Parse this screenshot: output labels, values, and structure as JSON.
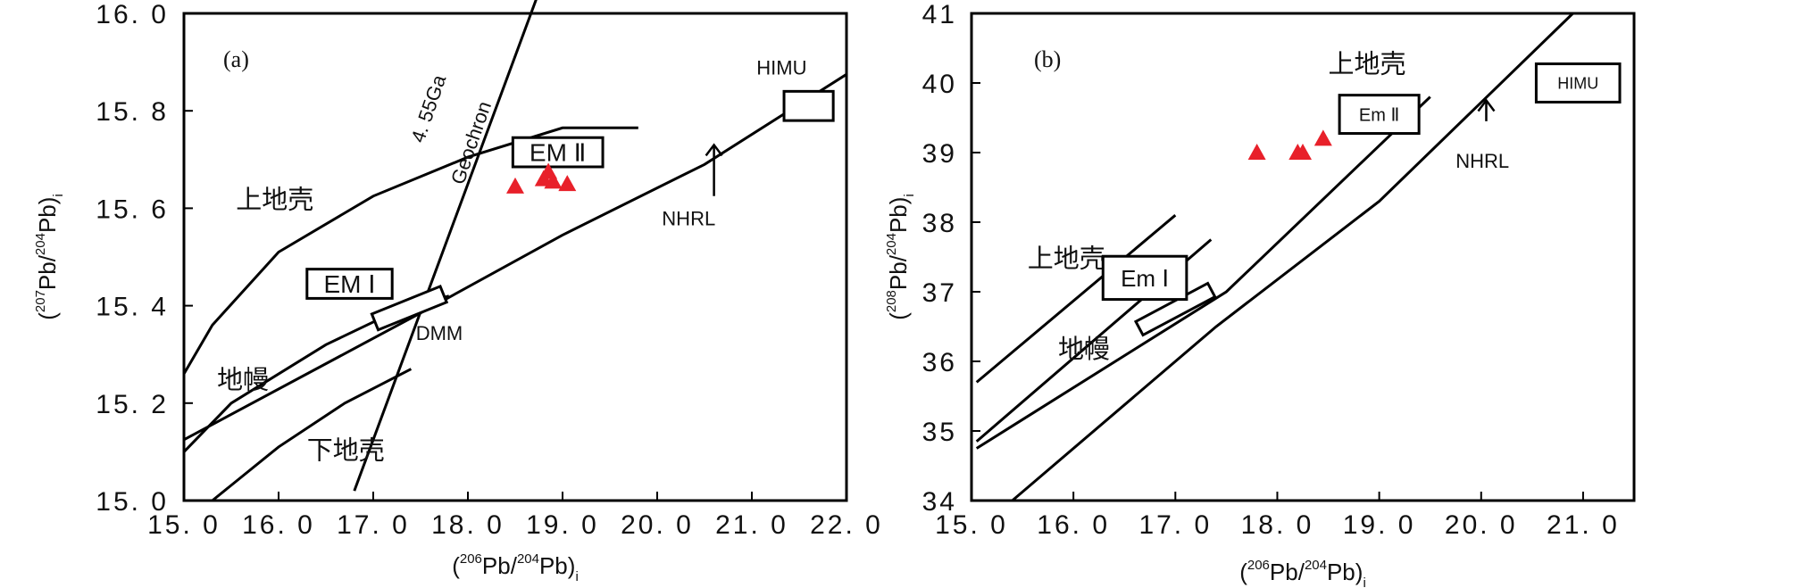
{
  "chart_data": [
    {
      "id": "a",
      "type": "scatter",
      "panel_label": "(a)",
      "xlabel": {
        "open": "(",
        "sup": "206",
        "a": "Pb/",
        "sup2": "204",
        "b": "Pb)",
        "sub": "i"
      },
      "ylabel": {
        "open": "(",
        "sup": "207",
        "a": "Pb/",
        "sup2": "204",
        "b": "Pb)",
        "sub": "i"
      },
      "xlim": [
        15.0,
        22.0
      ],
      "ylim": [
        15.0,
        16.0
      ],
      "x_tick_labels": [
        "15. 0",
        "16. 0",
        "17. 0",
        "18. 0",
        "19. 0",
        "20. 0",
        "21. 0",
        "22. 0"
      ],
      "x_ticks": [
        15,
        16,
        17,
        18,
        19,
        20,
        21,
        22
      ],
      "y_tick_labels": [
        "15. 0",
        "15. 2",
        "15. 4",
        "15. 6",
        "15. 8",
        "16. 0"
      ],
      "y_ticks": [
        15.0,
        15.2,
        15.4,
        15.6,
        15.8,
        16.0
      ],
      "grid": false,
      "marker_color": "#e8202a",
      "points": [
        [
          18.5,
          15.645
        ],
        [
          18.8,
          15.66
        ],
        [
          18.85,
          15.675
        ],
        [
          18.9,
          15.655
        ],
        [
          19.05,
          15.65
        ]
      ],
      "curves": [
        {
          "name": "upper-crust",
          "points": [
            [
              15.0,
              15.26
            ],
            [
              15.3,
              15.36
            ],
            [
              16.0,
              15.51
            ],
            [
              17.0,
              15.625
            ],
            [
              18.0,
              15.705
            ],
            [
              19.0,
              15.765
            ],
            [
              19.8,
              15.765
            ]
          ]
        },
        {
          "name": "mantle",
          "points": [
            [
              15.0,
              15.1
            ],
            [
              15.5,
              15.2
            ],
            [
              16.5,
              15.32
            ],
            [
              17.2,
              15.385
            ],
            [
              17.8,
              15.42
            ]
          ]
        },
        {
          "name": "nhrl",
          "points": [
            [
              15.0,
              15.125
            ],
            [
              17.5,
              15.385
            ],
            [
              19.0,
              15.545
            ],
            [
              20.5,
              15.69
            ],
            [
              22.0,
              15.875
            ]
          ]
        },
        {
          "name": "lower-crust",
          "points": [
            [
              15.3,
              15.0
            ],
            [
              16.0,
              15.11
            ],
            [
              16.7,
              15.2
            ],
            [
              17.4,
              15.27
            ]
          ]
        },
        {
          "name": "geochron",
          "points": [
            [
              16.8,
              15.02
            ],
            [
              18.8,
              16.07
            ]
          ]
        }
      ],
      "boxes": [
        {
          "name": "himu-box",
          "cx": 21.6,
          "cy": 15.81,
          "w": 0.52,
          "h": 0.06,
          "angle": 0
        },
        {
          "name": "dmm-box",
          "cx": 17.38,
          "cy": 15.395,
          "w": 0.78,
          "h": 0.035,
          "angle": -22
        }
      ],
      "arrows": [
        {
          "name": "nhrl-arrow",
          "x": 20.6,
          "y1": 15.625,
          "y2": 15.73
        }
      ],
      "labels": [
        {
          "name": "label-upper-crust",
          "text": "上地壳",
          "x": 15.55,
          "y": 15.6,
          "style": "region-label"
        },
        {
          "name": "label-mantle",
          "text": "地幔",
          "x": 15.35,
          "y": 15.23,
          "style": "region-label"
        },
        {
          "name": "label-lower-crust",
          "text": "下地壳",
          "x": 16.3,
          "y": 15.085,
          "style": "region-label"
        },
        {
          "name": "label-dmm",
          "text": "DMM",
          "x": 17.45,
          "y": 15.33,
          "style": "small-label"
        },
        {
          "name": "label-nhrl",
          "text": "NHRL",
          "x": 20.05,
          "y": 15.565,
          "style": "small-label"
        },
        {
          "name": "label-himu",
          "text": "HIMU",
          "x": 21.05,
          "y": 15.875,
          "style": "small-label"
        }
      ],
      "boxed_labels": [
        {
          "name": "label-em1",
          "text": "EM Ⅰ",
          "cx": 16.75,
          "cy": 15.445,
          "w": 0.9,
          "h": 0.06
        },
        {
          "name": "label-em2",
          "text": "EM Ⅱ",
          "cx": 18.95,
          "cy": 15.715,
          "w": 0.95,
          "h": 0.06
        }
      ],
      "rotated_labels": [
        {
          "name": "label-age",
          "text": "4. 55Ga",
          "x": 17.65,
          "y": 15.8,
          "angle": -71
        },
        {
          "name": "label-geochron",
          "text": "Geochron",
          "x": 18.1,
          "y": 15.73,
          "angle": -71
        }
      ]
    },
    {
      "id": "b",
      "type": "scatter",
      "panel_label": "(b)",
      "xlabel": {
        "open": "(",
        "sup": "206",
        "a": "Pb/",
        "sup2": "204",
        "b": "Pb)",
        "sub": "i"
      },
      "ylabel": {
        "open": "(",
        "sup": "208",
        "a": "Pb/",
        "sup2": "204",
        "b": "Pb)",
        "sub": "i"
      },
      "xlim": [
        15.0,
        21.5
      ],
      "ylim": [
        34.0,
        41.0
      ],
      "x_tick_labels": [
        "15. 0",
        "16. 0",
        "17. 0",
        "18. 0",
        "19. 0",
        "20. 0",
        "21. 0"
      ],
      "x_ticks": [
        15,
        16,
        17,
        18,
        19,
        20,
        21
      ],
      "y_tick_labels": [
        "34",
        "35",
        "36",
        "37",
        "38",
        "39",
        "40",
        "41"
      ],
      "y_ticks": [
        34,
        35,
        36,
        37,
        38,
        39,
        40,
        41
      ],
      "grid": false,
      "marker_color": "#e8202a",
      "points": [
        [
          17.8,
          39.0
        ],
        [
          18.2,
          39.0
        ],
        [
          18.25,
          39.0
        ],
        [
          18.45,
          39.2
        ]
      ],
      "curves": [
        {
          "name": "upper-crust",
          "points": [
            [
              15.05,
              35.7
            ],
            [
              17.0,
              38.1
            ]
          ]
        },
        {
          "name": "mantle",
          "points": [
            [
              15.05,
              34.85
            ],
            [
              17.35,
              37.75
            ]
          ]
        },
        {
          "name": "upper-nhrl",
          "points": [
            [
              15.05,
              34.75
            ],
            [
              17.5,
              37.0
            ],
            [
              19.5,
              39.8
            ]
          ]
        },
        {
          "name": "nhrl",
          "points": [
            [
              15.4,
              34.0
            ],
            [
              17.4,
              36.5
            ],
            [
              19.0,
              38.3
            ],
            [
              20.9,
              41.0
            ]
          ]
        }
      ],
      "boxes": [
        {
          "name": "dmm-box",
          "cx": 17.0,
          "cy": 36.75,
          "w": 0.8,
          "h": 0.22,
          "angle": -28
        }
      ],
      "arrows": [
        {
          "name": "nhrl-arrow",
          "x": 20.05,
          "y1": 39.45,
          "y2": 39.75
        }
      ],
      "labels": [
        {
          "name": "label-upper-crust-top",
          "text": "上地壳",
          "x": 18.5,
          "y": 40.15,
          "style": "region-label"
        },
        {
          "name": "label-upper-crust",
          "text": "上地壳",
          "x": 15.55,
          "y": 37.35,
          "style": "region-label"
        },
        {
          "name": "label-mantle",
          "text": "地幔",
          "x": 15.85,
          "y": 36.05,
          "style": "region-label"
        },
        {
          "name": "label-nhrl",
          "text": "NHRL",
          "x": 19.75,
          "y": 38.78,
          "style": "small-label"
        }
      ],
      "boxed_labels": [
        {
          "name": "label-em1",
          "text": "Em Ⅰ",
          "cx": 16.7,
          "cy": 37.2,
          "w": 0.82,
          "h": 0.62,
          "font": 26
        },
        {
          "name": "label-em2",
          "text": "Em Ⅱ",
          "cx": 19.0,
          "cy": 39.55,
          "w": 0.78,
          "h": 0.55,
          "font": 20
        },
        {
          "name": "label-himu",
          "text": "HIMU",
          "cx": 20.95,
          "cy": 40.0,
          "w": 0.82,
          "h": 0.55,
          "font": 18
        }
      ],
      "rotated_labels": []
    }
  ]
}
